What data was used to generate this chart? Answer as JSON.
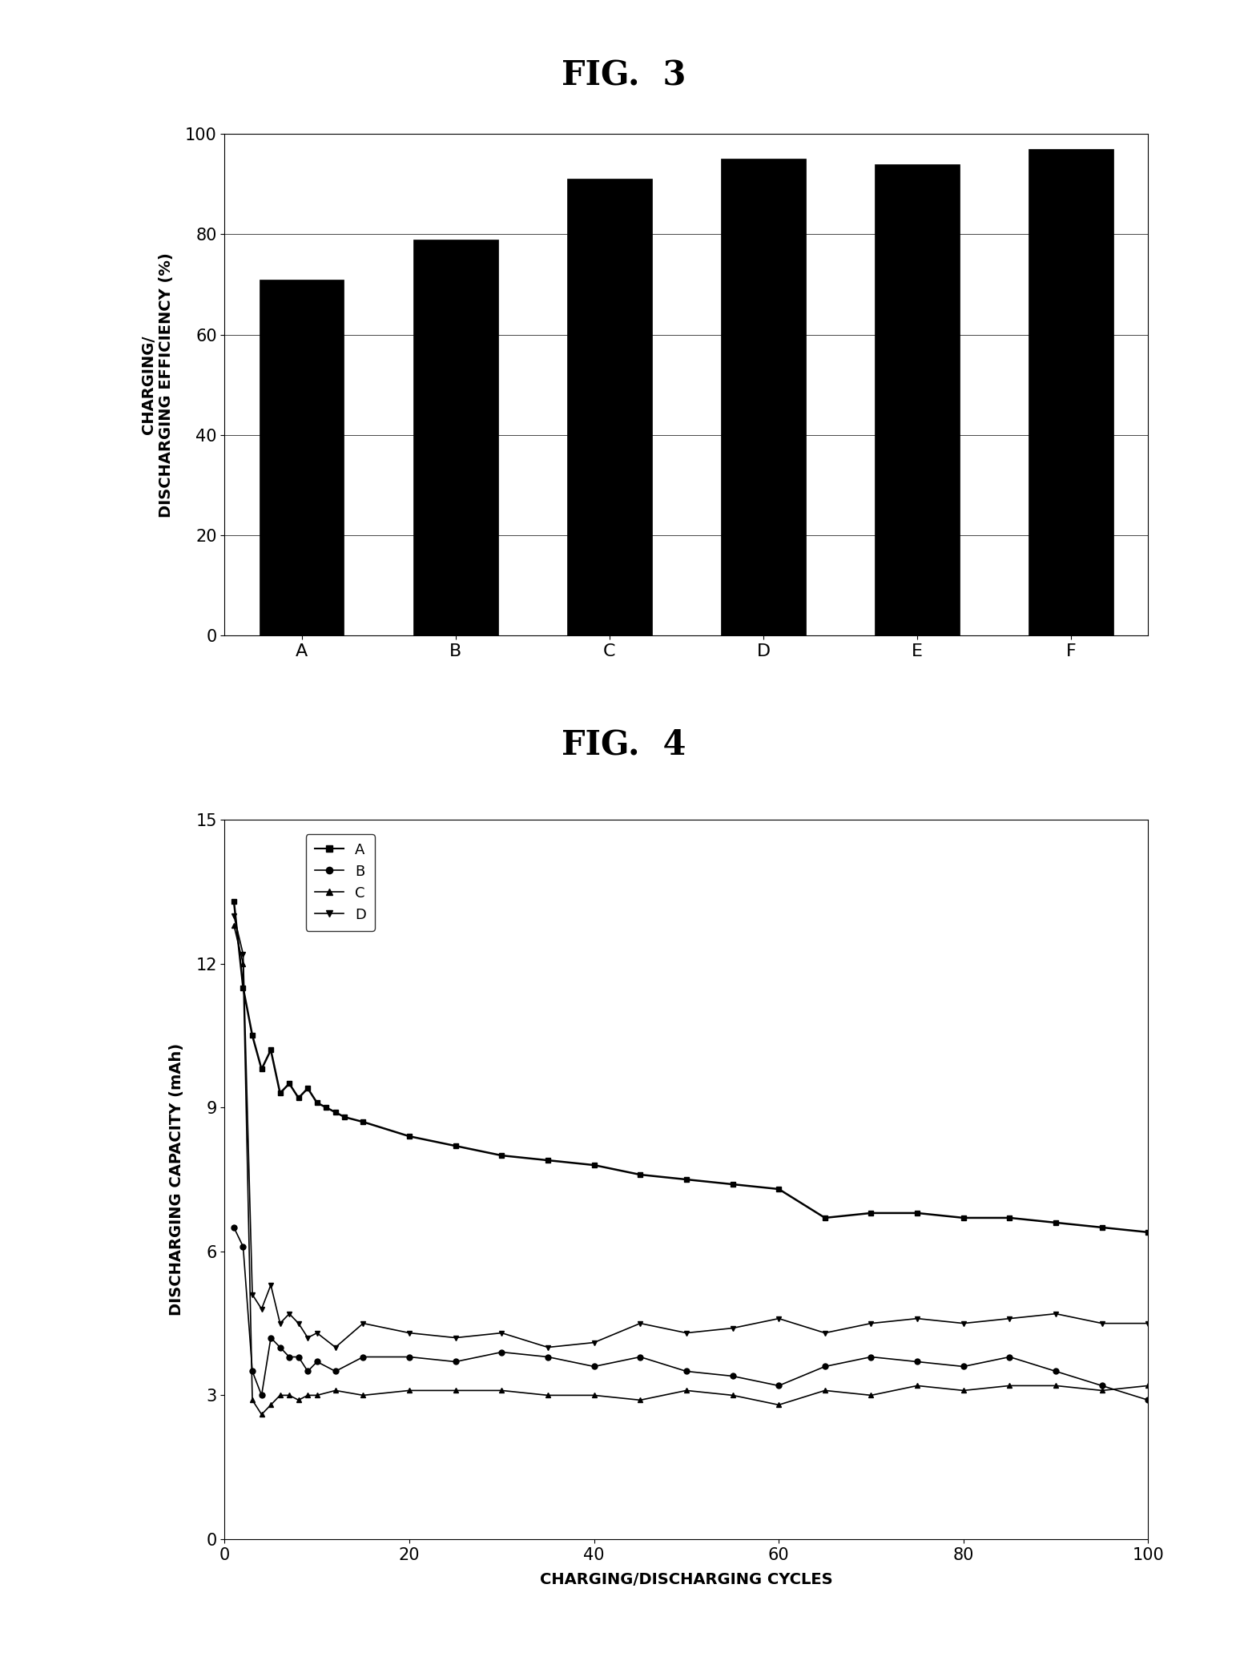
{
  "fig3_title": "FIG.  3",
  "fig4_title": "FIG.  4",
  "bar_categories": [
    "A",
    "B",
    "C",
    "D",
    "E",
    "F"
  ],
  "bar_values": [
    71,
    79,
    91,
    95,
    94,
    97
  ],
  "bar_color": "#000000",
  "bar_ylabel_line1": "CHARGING/",
  "bar_ylabel_line2": "DISCHARGING EFFICIENCY (%)",
  "bar_ylim": [
    0,
    100
  ],
  "bar_yticks": [
    0,
    20,
    40,
    60,
    80,
    100
  ],
  "line_ylabel": "DISCHARGING CAPACITY (mAh)",
  "line_xlabel": "CHARGING/DISCHARGING CYCLES",
  "line_ylim": [
    0,
    15
  ],
  "line_yticks": [
    0,
    3,
    6,
    9,
    12,
    15
  ],
  "line_xlim": [
    0,
    100
  ],
  "line_xticks": [
    0,
    20,
    40,
    60,
    80,
    100
  ],
  "series_A_x": [
    1,
    2,
    3,
    4,
    5,
    6,
    7,
    8,
    9,
    10,
    11,
    12,
    13,
    15,
    20,
    25,
    30,
    35,
    40,
    45,
    50,
    55,
    60,
    65,
    70,
    75,
    80,
    85,
    90,
    95,
    100
  ],
  "series_A_y": [
    13.3,
    11.5,
    10.5,
    9.8,
    10.2,
    9.3,
    9.5,
    9.2,
    9.4,
    9.1,
    9.0,
    8.9,
    8.8,
    8.7,
    8.4,
    8.2,
    8.0,
    7.9,
    7.8,
    7.6,
    7.5,
    7.4,
    7.3,
    6.7,
    6.8,
    6.8,
    6.7,
    6.7,
    6.6,
    6.5,
    6.4
  ],
  "series_B_x": [
    1,
    2,
    3,
    4,
    5,
    6,
    7,
    8,
    9,
    10,
    12,
    15,
    20,
    25,
    30,
    35,
    40,
    45,
    50,
    55,
    60,
    65,
    70,
    75,
    80,
    85,
    90,
    95,
    100
  ],
  "series_B_y": [
    6.5,
    6.1,
    3.5,
    3.0,
    4.2,
    4.0,
    3.8,
    3.8,
    3.5,
    3.7,
    3.5,
    3.8,
    3.8,
    3.7,
    3.9,
    3.8,
    3.6,
    3.8,
    3.5,
    3.4,
    3.2,
    3.6,
    3.8,
    3.7,
    3.6,
    3.8,
    3.5,
    3.2,
    2.9
  ],
  "series_C_x": [
    1,
    2,
    3,
    4,
    5,
    6,
    7,
    8,
    9,
    10,
    12,
    15,
    20,
    25,
    30,
    35,
    40,
    45,
    50,
    55,
    60,
    65,
    70,
    75,
    80,
    85,
    90,
    95,
    100
  ],
  "series_C_y": [
    12.8,
    12.0,
    2.9,
    2.6,
    2.8,
    3.0,
    3.0,
    2.9,
    3.0,
    3.0,
    3.1,
    3.0,
    3.1,
    3.1,
    3.1,
    3.0,
    3.0,
    2.9,
    3.1,
    3.0,
    2.8,
    3.1,
    3.0,
    3.2,
    3.1,
    3.2,
    3.2,
    3.1,
    3.2
  ],
  "series_D_x": [
    1,
    2,
    3,
    4,
    5,
    6,
    7,
    8,
    9,
    10,
    12,
    15,
    20,
    25,
    30,
    35,
    40,
    45,
    50,
    55,
    60,
    65,
    70,
    75,
    80,
    85,
    90,
    95,
    100
  ],
  "series_D_y": [
    13.0,
    12.2,
    5.1,
    4.8,
    5.3,
    4.5,
    4.7,
    4.5,
    4.2,
    4.3,
    4.0,
    4.5,
    4.3,
    4.2,
    4.3,
    4.0,
    4.1,
    4.5,
    4.3,
    4.4,
    4.6,
    4.3,
    4.5,
    4.6,
    4.5,
    4.6,
    4.7,
    4.5,
    4.5
  ],
  "background_color": "#ffffff"
}
